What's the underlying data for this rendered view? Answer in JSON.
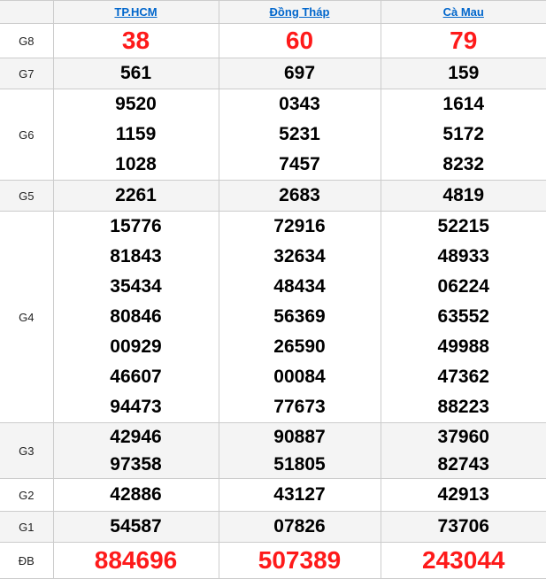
{
  "colors": {
    "accent_red": "#fe1a1a",
    "link_blue": "#0066cc",
    "stripe_gray": "#f4f4f4",
    "border_gray": "#cccccc"
  },
  "header": {
    "columns": [
      {
        "label": "TP.HCM"
      },
      {
        "label": "Đồng Tháp"
      },
      {
        "label": "Cà Mau"
      }
    ]
  },
  "rows": [
    {
      "label": "G8",
      "values": [
        [
          "38"
        ],
        [
          "60"
        ],
        [
          "79"
        ]
      ]
    },
    {
      "label": "G7",
      "values": [
        [
          "561"
        ],
        [
          "697"
        ],
        [
          "159"
        ]
      ]
    },
    {
      "label": "G6",
      "values": [
        [
          "9520",
          "1159",
          "1028"
        ],
        [
          "0343",
          "5231",
          "7457"
        ],
        [
          "1614",
          "5172",
          "8232"
        ]
      ]
    },
    {
      "label": "G5",
      "values": [
        [
          "2261"
        ],
        [
          "2683"
        ],
        [
          "4819"
        ]
      ]
    },
    {
      "label": "G4",
      "values": [
        [
          "15776",
          "81843",
          "35434",
          "80846",
          "00929",
          "46607",
          "94473"
        ],
        [
          "72916",
          "32634",
          "48434",
          "56369",
          "26590",
          "00084",
          "77673"
        ],
        [
          "52215",
          "48933",
          "06224",
          "63552",
          "49988",
          "47362",
          "88223"
        ]
      ]
    },
    {
      "label": "G3",
      "values": [
        [
          "42946",
          "97358"
        ],
        [
          "90887",
          "51805"
        ],
        [
          "37960",
          "82743"
        ]
      ]
    },
    {
      "label": "G2",
      "values": [
        [
          "42886"
        ],
        [
          "43127"
        ],
        [
          "42913"
        ]
      ]
    },
    {
      "label": "G1",
      "values": [
        [
          "54587"
        ],
        [
          "07826"
        ],
        [
          "73706"
        ]
      ]
    },
    {
      "label": "ĐB",
      "values": [
        [
          "884696"
        ],
        [
          "507389"
        ],
        [
          "243044"
        ]
      ]
    }
  ]
}
